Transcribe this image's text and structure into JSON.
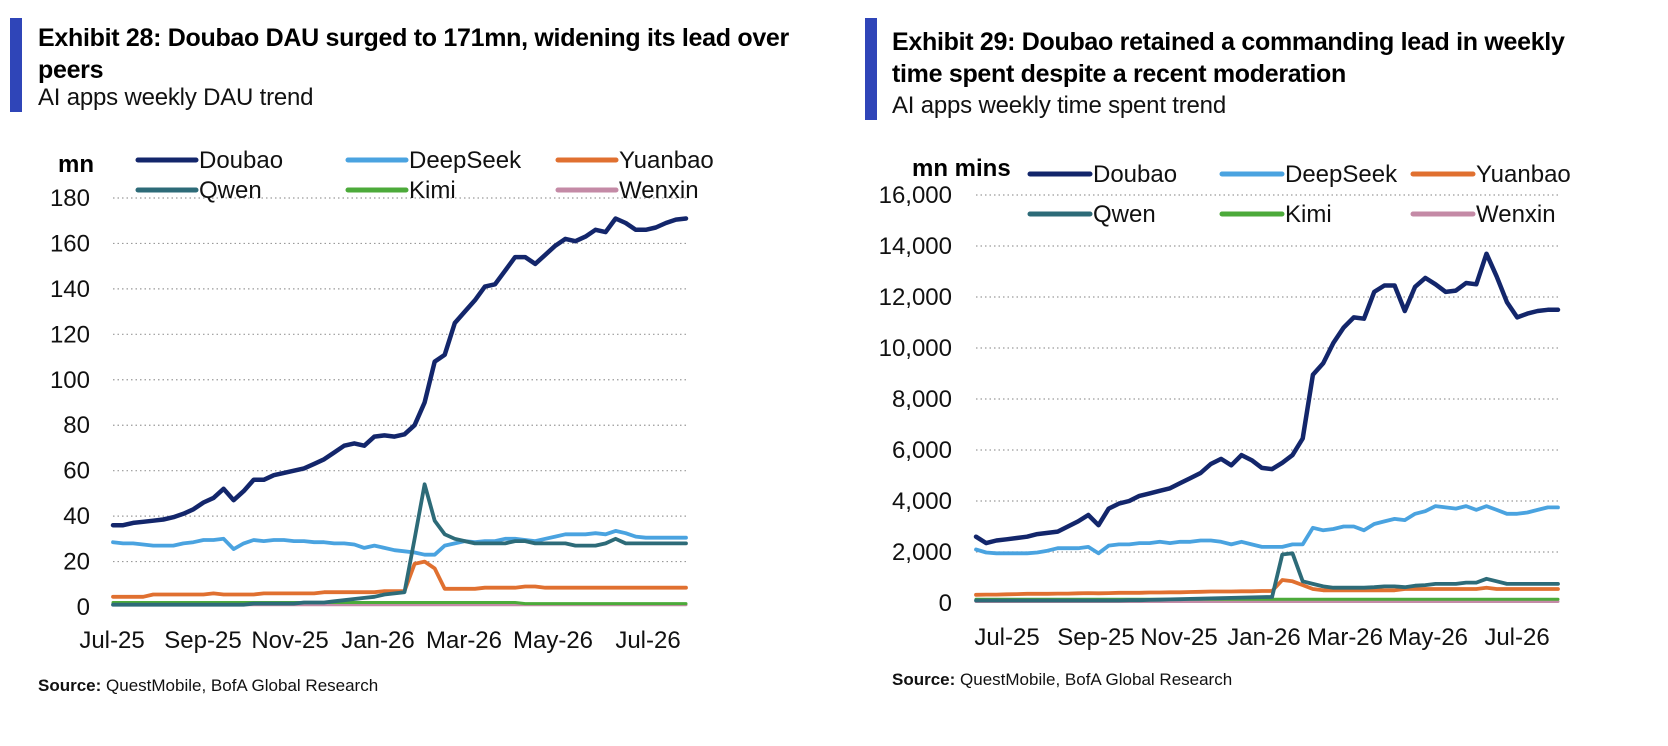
{
  "exhibits": [
    {
      "title": "Exhibit 28: Doubao DAU surged to 171mn, widening its lead over peers",
      "subtitle": "AI apps weekly DAU trend",
      "source_label": "Source:",
      "source_text": "QuestMobile, BofA Global Research"
    },
    {
      "title": "Exhibit 29: Doubao retained a commanding lead in weekly time spent despite a recent moderation",
      "subtitle": "AI apps weekly time spent trend",
      "source_label": "Source:",
      "source_text": "QuestMobile, BofA Global Research"
    }
  ],
  "colors": {
    "accent_bar": "#2f45b8",
    "Doubao": "#13266b",
    "DeepSeek": "#4aa3e0",
    "Yuanbao": "#e07030",
    "Qwen": "#2d6b78",
    "Kimi": "#4caa3a",
    "Wenxin": "#c48aa6",
    "grid": "#9a9a9a"
  },
  "chart_data": [
    {
      "type": "line",
      "title": "Exhibit 28: Doubao DAU surged to 171mn, widening its lead over peers",
      "subtitle": "AI apps weekly DAU trend",
      "ylabel": "mn",
      "ylim": [
        0,
        180
      ],
      "y_ticks": [
        "0",
        "20",
        "40",
        "60",
        "80",
        "100",
        "120",
        "140",
        "160",
        "180"
      ],
      "x_ticks": [
        "Jul-25",
        "Sep-25",
        "Nov-25",
        "Jan-26",
        "Mar-26",
        "May-26",
        "Jul-26"
      ],
      "grid": "horizontal dotted",
      "legend": "top, 3 columns",
      "series": [
        {
          "name": "Doubao",
          "values": [
            36,
            36,
            37,
            37.5,
            38,
            38.5,
            39.5,
            41,
            43,
            46,
            48,
            52,
            47,
            51,
            56,
            56,
            58,
            59,
            60,
            61,
            63,
            65,
            68,
            71,
            72,
            71,
            75,
            75.5,
            75,
            76,
            80,
            90,
            108,
            111,
            125,
            130,
            135,
            141,
            142,
            148,
            154,
            154,
            151,
            155,
            159,
            162,
            161,
            163,
            166,
            165,
            171,
            169,
            166,
            166,
            167,
            169,
            170.5,
            171
          ]
        },
        {
          "name": "DeepSeek",
          "values": [
            28.5,
            28,
            28,
            27.5,
            27,
            27,
            27,
            28,
            28.5,
            29.5,
            29.5,
            30,
            25.5,
            28,
            29.5,
            29,
            29.5,
            29.5,
            29,
            29,
            28.5,
            28.5,
            28,
            28,
            27.5,
            26,
            27,
            26,
            25,
            24.5,
            24,
            23,
            23,
            27,
            28,
            29,
            28.5,
            29,
            29,
            30,
            30,
            29.5,
            29,
            30,
            31,
            32,
            32,
            32,
            32.5,
            32,
            33.5,
            32.5,
            31,
            30.5,
            30.5,
            30.5,
            30.5,
            30.5
          ]
        },
        {
          "name": "Yuanbao",
          "values": [
            4.5,
            4.5,
            4.5,
            4.5,
            5.5,
            5.5,
            5.5,
            5.5,
            5.5,
            5.5,
            6,
            5.5,
            5.5,
            5.5,
            5.5,
            6,
            6,
            6,
            6,
            6,
            6,
            6.5,
            6.5,
            6.5,
            6.5,
            6.5,
            6.5,
            7,
            7,
            7,
            19,
            20,
            17,
            8,
            8,
            8,
            8,
            8.5,
            8.5,
            8.5,
            8.5,
            9,
            9,
            8.5,
            8.5,
            8.5,
            8.5,
            8.5,
            8.5,
            8.5,
            8.5,
            8.5,
            8.5,
            8.5,
            8.5,
            8.5,
            8.5,
            8.5
          ]
        },
        {
          "name": "Qwen",
          "values": [
            1,
            1,
            1,
            1,
            1,
            1,
            1,
            1,
            1,
            1,
            1,
            1,
            1,
            1,
            1.5,
            1.5,
            1.5,
            1.5,
            1.5,
            2,
            2,
            2,
            2.5,
            3,
            3.5,
            4,
            4.5,
            5.5,
            6,
            6.5,
            30,
            54,
            38,
            32,
            30,
            29,
            28,
            28,
            28,
            28,
            29,
            29,
            28,
            28,
            28,
            28,
            27,
            27,
            27,
            28,
            30,
            28,
            28,
            28,
            28,
            28,
            28,
            28
          ]
        },
        {
          "name": "Kimi",
          "values": [
            2,
            2,
            2,
            2,
            2,
            2,
            2,
            2,
            2,
            2,
            2,
            2,
            2,
            2,
            2,
            2,
            2,
            2,
            2,
            2,
            2,
            2,
            2,
            2,
            2,
            2,
            2,
            2,
            2,
            2,
            2,
            2,
            2,
            2,
            2,
            2,
            2,
            2,
            2,
            2,
            2,
            1.5,
            1.5,
            1.5,
            1.5,
            1.5,
            1.5,
            1.5,
            1.5,
            1.5,
            1.5,
            1.5,
            1.5,
            1.5,
            1.5,
            1.5,
            1.5,
            1.5
          ]
        },
        {
          "name": "Wenxin",
          "values": [
            1,
            1,
            1,
            1,
            1,
            1,
            1,
            1,
            1,
            1,
            1,
            1,
            1,
            1,
            1,
            1,
            1,
            1,
            1,
            1,
            1,
            1,
            1,
            1,
            1,
            1,
            1,
            1,
            1,
            1,
            1,
            1,
            1,
            1,
            1,
            1,
            1,
            1,
            1,
            1,
            1,
            1,
            1,
            1,
            1,
            1,
            1,
            1,
            1,
            1,
            1,
            1,
            1,
            1,
            1,
            1,
            1,
            1
          ]
        }
      ]
    },
    {
      "type": "line",
      "title": "Exhibit 29: Doubao retained a commanding lead in weekly time spent despite a recent moderation",
      "subtitle": "AI apps weekly time spent trend",
      "ylabel": "mn mins",
      "ylim": [
        0,
        16000
      ],
      "y_ticks": [
        "0",
        "2,000",
        "4,000",
        "6,000",
        "8,000",
        "10,000",
        "12,000",
        "14,000",
        "16,000"
      ],
      "x_ticks": [
        "Jul-25",
        "Sep-25",
        "Nov-25",
        "Jan-26",
        "Mar-26",
        "May-26",
        "Jul-26"
      ],
      "grid": "horizontal dotted",
      "legend": "top, 3 columns",
      "series": [
        {
          "name": "Doubao",
          "values": [
            2600,
            2350,
            2450,
            2500,
            2550,
            2600,
            2700,
            2750,
            2800,
            3000,
            3200,
            3450,
            3050,
            3700,
            3900,
            4000,
            4200,
            4300,
            4400,
            4500,
            4700,
            4900,
            5100,
            5450,
            5650,
            5400,
            5800,
            5600,
            5300,
            5250,
            5500,
            5800,
            6450,
            8950,
            9400,
            10200,
            10800,
            11200,
            11150,
            12200,
            12450,
            12450,
            11450,
            12400,
            12750,
            12500,
            12200,
            12250,
            12550,
            12500,
            13700,
            12800,
            11800,
            11200,
            11350,
            11450,
            11500,
            11500
          ]
        },
        {
          "name": "DeepSeek",
          "values": [
            2100,
            1980,
            1950,
            1950,
            1950,
            1950,
            1980,
            2050,
            2150,
            2150,
            2150,
            2200,
            1950,
            2250,
            2300,
            2300,
            2350,
            2350,
            2400,
            2350,
            2400,
            2400,
            2450,
            2450,
            2400,
            2300,
            2400,
            2300,
            2200,
            2200,
            2200,
            2300,
            2300,
            2950,
            2850,
            2900,
            3000,
            3000,
            2850,
            3100,
            3200,
            3300,
            3250,
            3500,
            3600,
            3800,
            3750,
            3700,
            3800,
            3650,
            3800,
            3650,
            3500,
            3500,
            3550,
            3650,
            3750,
            3750
          ]
        },
        {
          "name": "Yuanbao",
          "values": [
            320,
            330,
            330,
            340,
            350,
            360,
            360,
            360,
            370,
            370,
            380,
            390,
            380,
            390,
            400,
            400,
            400,
            410,
            410,
            420,
            420,
            430,
            440,
            450,
            450,
            450,
            460,
            460,
            470,
            470,
            900,
            850,
            700,
            550,
            500,
            500,
            500,
            500,
            500,
            500,
            500,
            500,
            550,
            550,
            550,
            550,
            550,
            550,
            550,
            550,
            600,
            550,
            550,
            550,
            550,
            550,
            550,
            550
          ]
        },
        {
          "name": "Qwen",
          "values": [
            100,
            100,
            100,
            100,
            100,
            100,
            100,
            100,
            100,
            100,
            100,
            100,
            100,
            100,
            100,
            110,
            110,
            120,
            130,
            140,
            150,
            160,
            170,
            180,
            190,
            200,
            210,
            220,
            230,
            240,
            1900,
            1950,
            850,
            750,
            650,
            600,
            600,
            600,
            600,
            620,
            650,
            650,
            620,
            680,
            700,
            750,
            750,
            750,
            800,
            800,
            950,
            850,
            750,
            750,
            750,
            750,
            750,
            750
          ]
        },
        {
          "name": "Kimi",
          "values": [
            150,
            150,
            150,
            150,
            150,
            150,
            150,
            150,
            150,
            150,
            150,
            150,
            150,
            150,
            150,
            150,
            150,
            150,
            150,
            150,
            150,
            150,
            150,
            150,
            150,
            150,
            150,
            150,
            150,
            150,
            150,
            150,
            150,
            150,
            150,
            150,
            150,
            150,
            150,
            150,
            150,
            150,
            150,
            150,
            150,
            150,
            150,
            150,
            150,
            150,
            150,
            150,
            150,
            150,
            150,
            150,
            150,
            150
          ]
        },
        {
          "name": "Wenxin",
          "values": [
            60,
            60,
            60,
            60,
            60,
            60,
            60,
            60,
            60,
            60,
            60,
            60,
            60,
            60,
            60,
            60,
            60,
            60,
            60,
            60,
            60,
            60,
            60,
            60,
            60,
            60,
            60,
            60,
            60,
            60,
            60,
            60,
            60,
            60,
            60,
            60,
            60,
            60,
            60,
            60,
            60,
            60,
            60,
            60,
            60,
            60,
            60,
            60,
            60,
            60,
            60,
            60,
            60,
            60,
            60,
            60,
            60,
            60
          ]
        }
      ]
    }
  ]
}
